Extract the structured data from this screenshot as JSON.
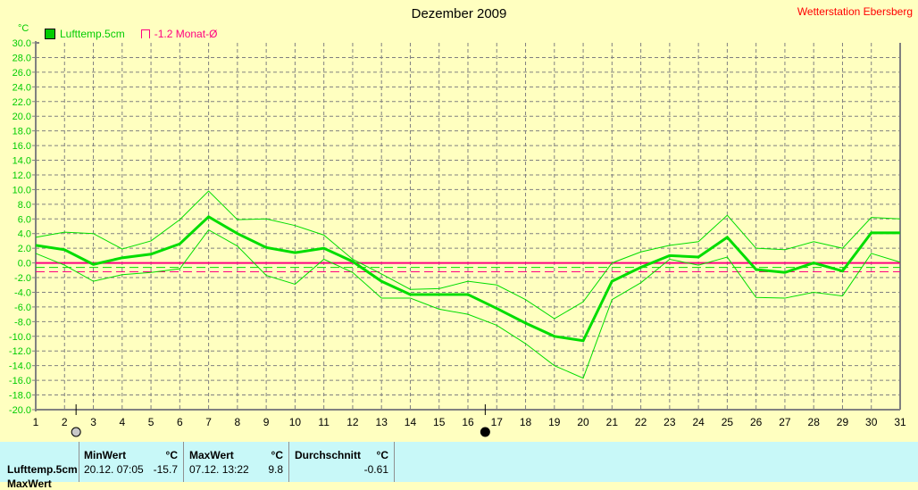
{
  "title": "Dezember 2009",
  "station": "Wetterstation Ebersberg",
  "unit": "°C",
  "legend": {
    "series": "Lufttemp.5cm",
    "mean": "-1.2 Monat-Ø"
  },
  "colors": {
    "series": "#00dd00",
    "mean": "#ff0080",
    "grid": "#808080",
    "axis": "#808080"
  },
  "chart_data": {
    "type": "line",
    "title": "Dezember 2009",
    "ylabel": "°C",
    "ylim": [
      -20,
      30
    ],
    "yticks": [
      "30.0",
      "28.0",
      "26.0",
      "24.0",
      "22.0",
      "20.0",
      "18.0",
      "16.0",
      "14.0",
      "12.0",
      "10.0",
      "8.0",
      "6.0",
      "4.0",
      "2.0",
      "0.0",
      "-2.0",
      "-4.0",
      "-6.0",
      "-8.0",
      "-10.0",
      "-12.0",
      "-14.0",
      "-16.0",
      "-18.0",
      "-20.0"
    ],
    "x": [
      1,
      2,
      3,
      4,
      5,
      6,
      7,
      8,
      9,
      10,
      11,
      12,
      13,
      14,
      15,
      16,
      17,
      18,
      19,
      20,
      21,
      22,
      23,
      24,
      25,
      26,
      27,
      28,
      29,
      30,
      31
    ],
    "series": [
      {
        "name": "Lufttemp.5cm Mittel",
        "values": [
          2.4,
          1.8,
          -0.2,
          0.7,
          1.2,
          2.6,
          6.3,
          4.0,
          2.1,
          1.4,
          2.0,
          0.2,
          -2.5,
          -4.3,
          -4.3,
          -4.3,
          -6.2,
          -8.2,
          -10.0,
          -10.6,
          -2.5,
          -0.6,
          1.0,
          0.8,
          3.5,
          -0.9,
          -1.3,
          0.0,
          -1.1,
          4.1,
          4.1
        ]
      },
      {
        "name": "Lufttemp.5cm Max",
        "values": [
          3.5,
          4.2,
          4.0,
          1.9,
          3.0,
          5.9,
          9.8,
          5.9,
          6.0,
          5.1,
          3.8,
          0.5,
          -1.5,
          -3.6,
          -3.5,
          -2.5,
          -3.0,
          -5.0,
          -7.6,
          -5.3,
          0.0,
          1.5,
          2.4,
          2.9,
          6.5,
          2.0,
          1.8,
          2.9,
          2.0,
          6.2,
          6.0
        ]
      },
      {
        "name": "Lufttemp.5cm Min",
        "values": [
          1.3,
          -0.3,
          -2.5,
          -1.6,
          -1.3,
          -0.8,
          4.5,
          2.3,
          -1.7,
          -2.9,
          0.5,
          -1.3,
          -4.8,
          -4.8,
          -6.3,
          -7.0,
          -8.5,
          -11.0,
          -14.0,
          -15.7,
          -5.0,
          -2.7,
          0.5,
          -0.3,
          0.8,
          -4.7,
          -4.8,
          -4.0,
          -4.5,
          1.3,
          0.1
        ]
      }
    ],
    "reference_lines": [
      {
        "name": "zero",
        "value": 0
      },
      {
        "name": "period average",
        "value": -0.61
      },
      {
        "name": "Monat-Ø",
        "value": -1.2
      }
    ],
    "moon_phases": [
      {
        "day": 2.4,
        "phase": "full"
      },
      {
        "day": 16.6,
        "phase": "new"
      }
    ]
  },
  "table": {
    "row_label": "Lufttemp.5cm",
    "row2_label": "MaxWert",
    "min": {
      "header": "MinWert",
      "unit": "°C",
      "date": "20.12.  07:05",
      "value": "-15.7"
    },
    "max": {
      "header": "MaxWert",
      "unit": "°C",
      "date": "07.12.  13:22",
      "value": "9.8"
    },
    "avg": {
      "header": "Durchschnitt",
      "unit": "°C",
      "value": "-0.61"
    }
  }
}
